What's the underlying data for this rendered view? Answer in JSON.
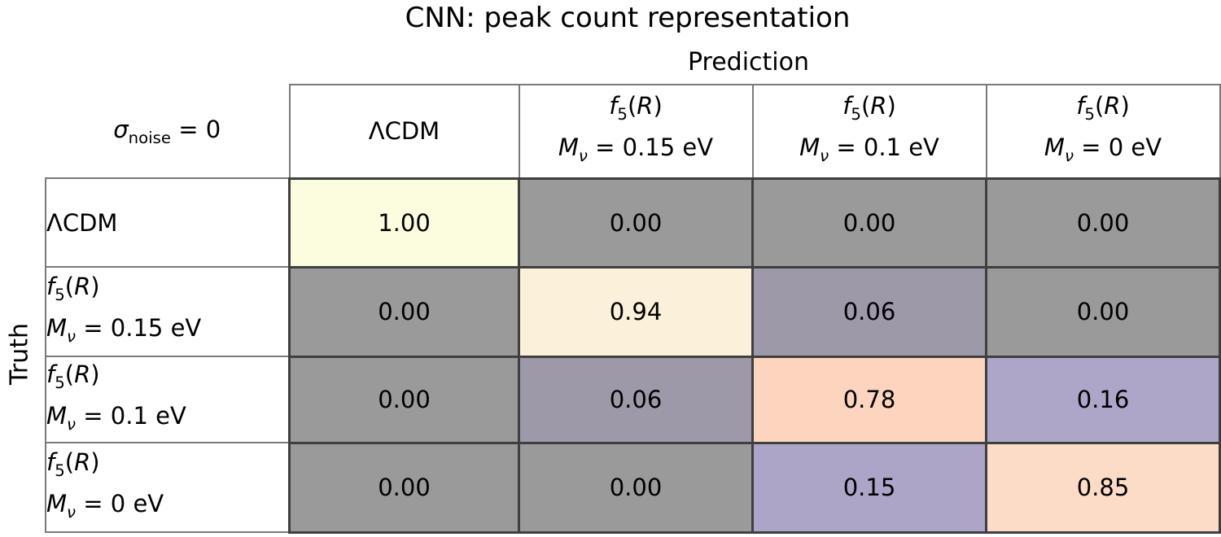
{
  "title": "CNN: peak count representation",
  "axes": {
    "x_label": "Prediction",
    "y_label": "Truth"
  },
  "corner_label_html": "<i>σ</i><sub>noise</sub> = 0",
  "classes": [
    {
      "html": "ΛCDM"
    },
    {
      "html": "<i>f</i><sub>5</sub>(<i>R</i>)<br><i>M<sub>ν</sub></i> = 0.15 eV"
    },
    {
      "html": "<i>f</i><sub>5</sub>(<i>R</i>)<br><i>M<sub>ν</sub></i> = 0.1 eV"
    },
    {
      "html": "<i>f</i><sub>5</sub>(<i>R</i>)<br><i>M<sub>ν</sub></i> = 0 eV"
    }
  ],
  "matrix_text": [
    [
      "1.00",
      "0.00",
      "0.00",
      "0.00"
    ],
    [
      "0.00",
      "0.94",
      "0.06",
      "0.00"
    ],
    [
      "0.00",
      "0.06",
      "0.78",
      "0.16"
    ],
    [
      "0.00",
      "0.00",
      "0.15",
      "0.85"
    ]
  ],
  "cell_colors": [
    [
      "#fcfcdf",
      "#9a9a9a",
      "#9a9a9a",
      "#9a9a9a"
    ],
    [
      "#9a9a9a",
      "#fbf1da",
      "#9e99a8",
      "#9a9a9a"
    ],
    [
      "#9a9a9a",
      "#9e99a8",
      "#fdd4bd",
      "#aea6c9"
    ],
    [
      "#9a9a9a",
      "#9a9a9a",
      "#ada5c7",
      "#fcdcc6"
    ]
  ],
  "palette": {
    "zero_gray": "#9a9a9a",
    "diagonal_yellow": "#fcfcdf",
    "diagonal_cream": "#fbf1da",
    "diagonal_peach": "#fdd4bd",
    "off_diagonal_lavender": "#ada5c7",
    "cell_border_dark": "#3f3f3f",
    "label_border_gray": "#7a7a7a"
  },
  "chart_data": {
    "type": "heatmap",
    "title": "CNN: peak count representation",
    "xlabel": "Prediction",
    "ylabel": "Truth",
    "annotation": "σ_noise = 0",
    "categories": [
      "ΛCDM",
      "f5(R) Mν = 0.15 eV",
      "f5(R) Mν = 0.1 eV",
      "f5(R) Mν = 0 eV"
    ],
    "matrix": [
      [
        1.0,
        0.0,
        0.0,
        0.0
      ],
      [
        0.0,
        0.94,
        0.06,
        0.0
      ],
      [
        0.0,
        0.06,
        0.78,
        0.16
      ],
      [
        0.0,
        0.0,
        0.15,
        0.85
      ]
    ],
    "value_range": [
      0,
      1
    ],
    "legend_position": "none",
    "grid": "cell-borders"
  }
}
